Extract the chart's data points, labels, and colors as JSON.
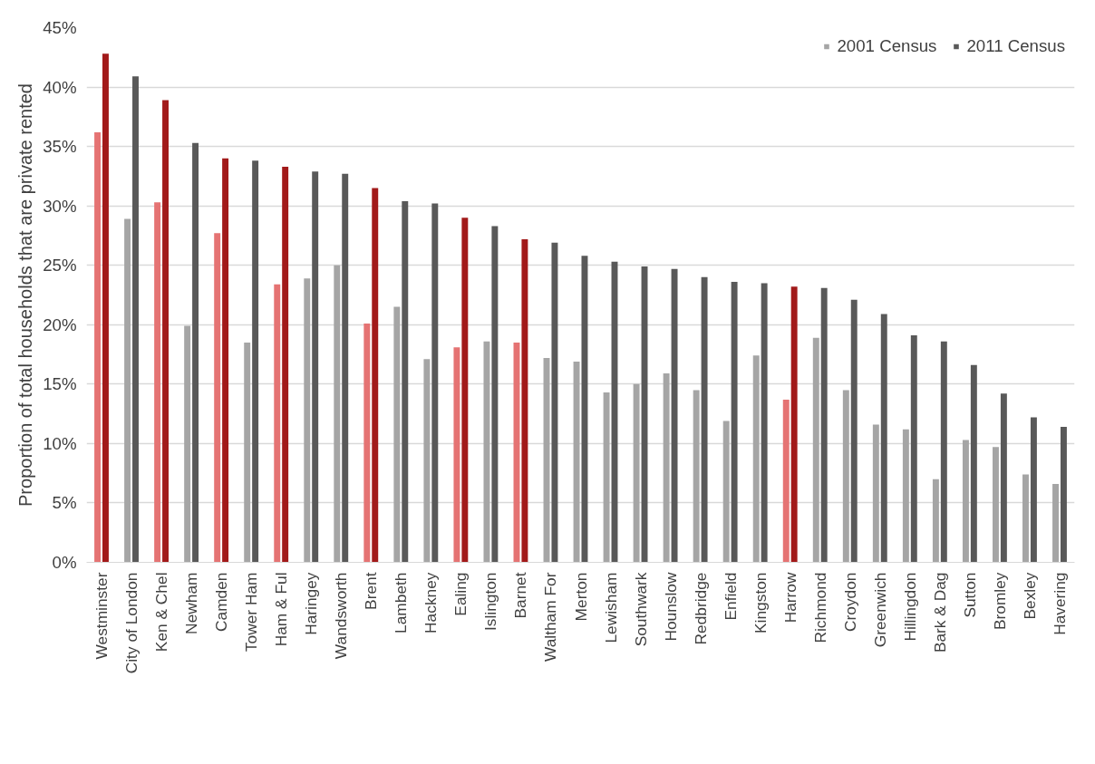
{
  "chart_data": {
    "type": "bar",
    "ylabel": "Proportion of total households that are private rented",
    "categories": [
      "Westminster",
      "City of London",
      "Ken & Chel",
      "Newham",
      "Camden",
      "Tower Ham",
      "Ham & Ful",
      "Haringey",
      "Wandsworth",
      "Brent",
      "Lambeth",
      "Hackney",
      "Ealing",
      "Islington",
      "Barnet",
      "Waltham For",
      "Merton",
      "Lewisham",
      "Southwark",
      "Hounslow",
      "Redbridge",
      "Enfield",
      "Kingston",
      "Harrow",
      "Richmond",
      "Croydon",
      "Greenwich",
      "Hillingdon",
      "Bark & Dag",
      "Sutton",
      "Bromley",
      "Bexley",
      "Havering"
    ],
    "series": [
      {
        "name": "2001 Census",
        "color": "#a5a5a5",
        "colors": [
          "#e57373",
          "#a5a5a5",
          "#e57373",
          "#a5a5a5",
          "#e57373",
          "#a5a5a5",
          "#e57373",
          "#a5a5a5",
          "#a5a5a5",
          "#e57373",
          "#a5a5a5",
          "#a5a5a5",
          "#e57373",
          "#a5a5a5",
          "#e57373",
          "#a5a5a5",
          "#a5a5a5",
          "#a5a5a5",
          "#a5a5a5",
          "#a5a5a5",
          "#a5a5a5",
          "#a5a5a5",
          "#a5a5a5",
          "#e57373",
          "#a5a5a5",
          "#a5a5a5",
          "#a5a5a5",
          "#a5a5a5",
          "#a5a5a5",
          "#a5a5a5",
          "#a5a5a5",
          "#a5a5a5",
          "#a5a5a5"
        ],
        "values": [
          36.2,
          28.9,
          30.3,
          19.9,
          27.7,
          18.5,
          23.4,
          23.9,
          25.0,
          20.1,
          21.5,
          17.1,
          18.1,
          18.6,
          18.5,
          17.2,
          16.9,
          14.3,
          15.0,
          15.9,
          14.5,
          11.9,
          17.4,
          13.7,
          18.9,
          14.5,
          11.6,
          11.2,
          7.0,
          10.3,
          9.7,
          7.4,
          6.6
        ]
      },
      {
        "name": "2011 Census",
        "color": "#595959",
        "colors": [
          "#a21a1a",
          "#595959",
          "#a21a1a",
          "#595959",
          "#a21a1a",
          "#595959",
          "#a21a1a",
          "#595959",
          "#595959",
          "#a21a1a",
          "#595959",
          "#595959",
          "#a21a1a",
          "#595959",
          "#a21a1a",
          "#595959",
          "#595959",
          "#595959",
          "#595959",
          "#595959",
          "#595959",
          "#595959",
          "#595959",
          "#a21a1a",
          "#595959",
          "#595959",
          "#595959",
          "#595959",
          "#595959",
          "#595959",
          "#595959",
          "#595959",
          "#595959"
        ],
        "values": [
          42.8,
          40.9,
          38.9,
          35.3,
          34.0,
          33.8,
          33.3,
          32.9,
          32.7,
          31.5,
          30.4,
          30.2,
          29.0,
          28.3,
          27.2,
          26.9,
          25.8,
          25.3,
          24.9,
          24.7,
          24.0,
          23.6,
          23.5,
          23.2,
          23.1,
          22.1,
          20.9,
          19.1,
          18.6,
          16.6,
          14.2,
          12.2,
          11.4
        ]
      }
    ],
    "ylim": [
      0,
      45
    ],
    "yticks": [
      {
        "value": 0,
        "label": "0%"
      },
      {
        "value": 5,
        "label": "5%"
      },
      {
        "value": 10,
        "label": "10%"
      },
      {
        "value": 15,
        "label": "15%"
      },
      {
        "value": 20,
        "label": "20%"
      },
      {
        "value": 25,
        "label": "25%"
      },
      {
        "value": 30,
        "label": "30%"
      },
      {
        "value": 35,
        "label": "35%"
      },
      {
        "value": 40,
        "label": "40%"
      },
      {
        "value": 45,
        "label": "45%"
      }
    ],
    "grid": "y",
    "legend": "top right"
  }
}
